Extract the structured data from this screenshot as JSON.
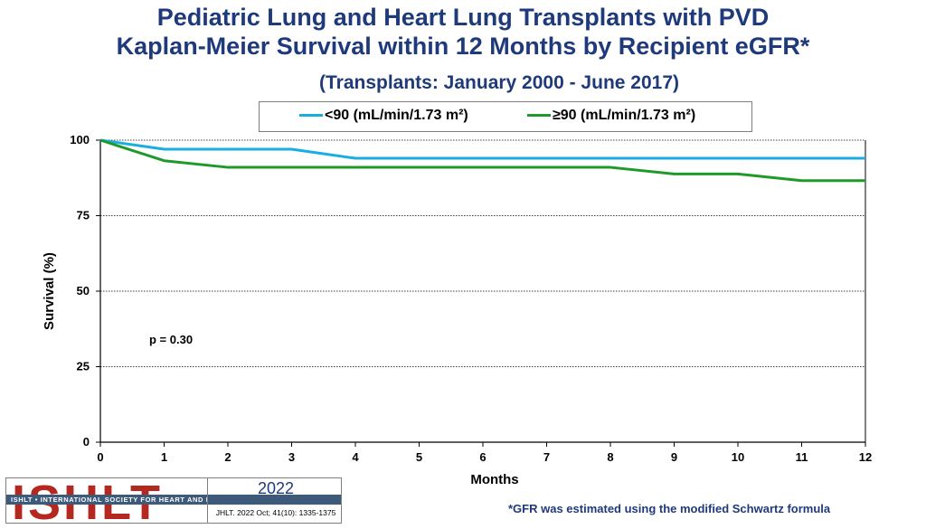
{
  "header": {
    "title_line1": "Pediatric Lung and Heart Lung Transplants with PVD",
    "title_line2": "Kaplan-Meier Survival within 12 Months by Recipient eGFR*",
    "subtitle": "(Transplants: January 2000 - June 2017)"
  },
  "chart_data": {
    "type": "line",
    "title": "Pediatric Lung and Heart Lung Transplants with PVD Kaplan-Meier Survival within 12 Months by Recipient eGFR*",
    "subtitle": "(Transplants: January 2000 - June 2017)",
    "xlabel": "Months",
    "ylabel": "Survival (%)",
    "xlim": [
      0,
      12
    ],
    "ylim": [
      0,
      100
    ],
    "x_ticks": [
      "0",
      "1",
      "2",
      "3",
      "4",
      "5",
      "6",
      "7",
      "8",
      "9",
      "10",
      "11",
      "12"
    ],
    "y_ticks": [
      "0",
      "25",
      "50",
      "75",
      "100"
    ],
    "grid": "dotted horizontal",
    "legend_position": "top",
    "annotation": "p = 0.30",
    "series": [
      {
        "name": "<90 (mL/min/1.73 m²)",
        "color": "#1aaee0",
        "x": [
          0,
          1,
          2,
          3,
          4,
          5,
          6,
          7,
          8,
          9,
          10,
          11,
          12
        ],
        "values": [
          100,
          97.0,
          97.0,
          97.0,
          94.0,
          94.0,
          94.0,
          94.0,
          94.0,
          94.0,
          94.0,
          94.0,
          94.0
        ]
      },
      {
        "name": "≥90 (mL/min/1.73 m²)",
        "color": "#1f9a2a",
        "x": [
          0,
          1,
          2,
          3,
          4,
          5,
          6,
          7,
          8,
          9,
          10,
          11,
          12
        ],
        "values": [
          100,
          93.2,
          91.0,
          91.0,
          91.0,
          91.0,
          91.0,
          91.0,
          91.0,
          88.8,
          88.8,
          86.6,
          86.6
        ]
      }
    ]
  },
  "footnote": "*GFR was estimated using the modified Schwartz formula",
  "logo": {
    "text": "ISHLT",
    "band": "ISHLT • INTERNATIONAL SOCIETY FOR HEART AND LUNG TRANSPLANTATION",
    "year": "2022",
    "citation": "JHLT. 2022 Oct; 41(10): 1335-1375"
  }
}
